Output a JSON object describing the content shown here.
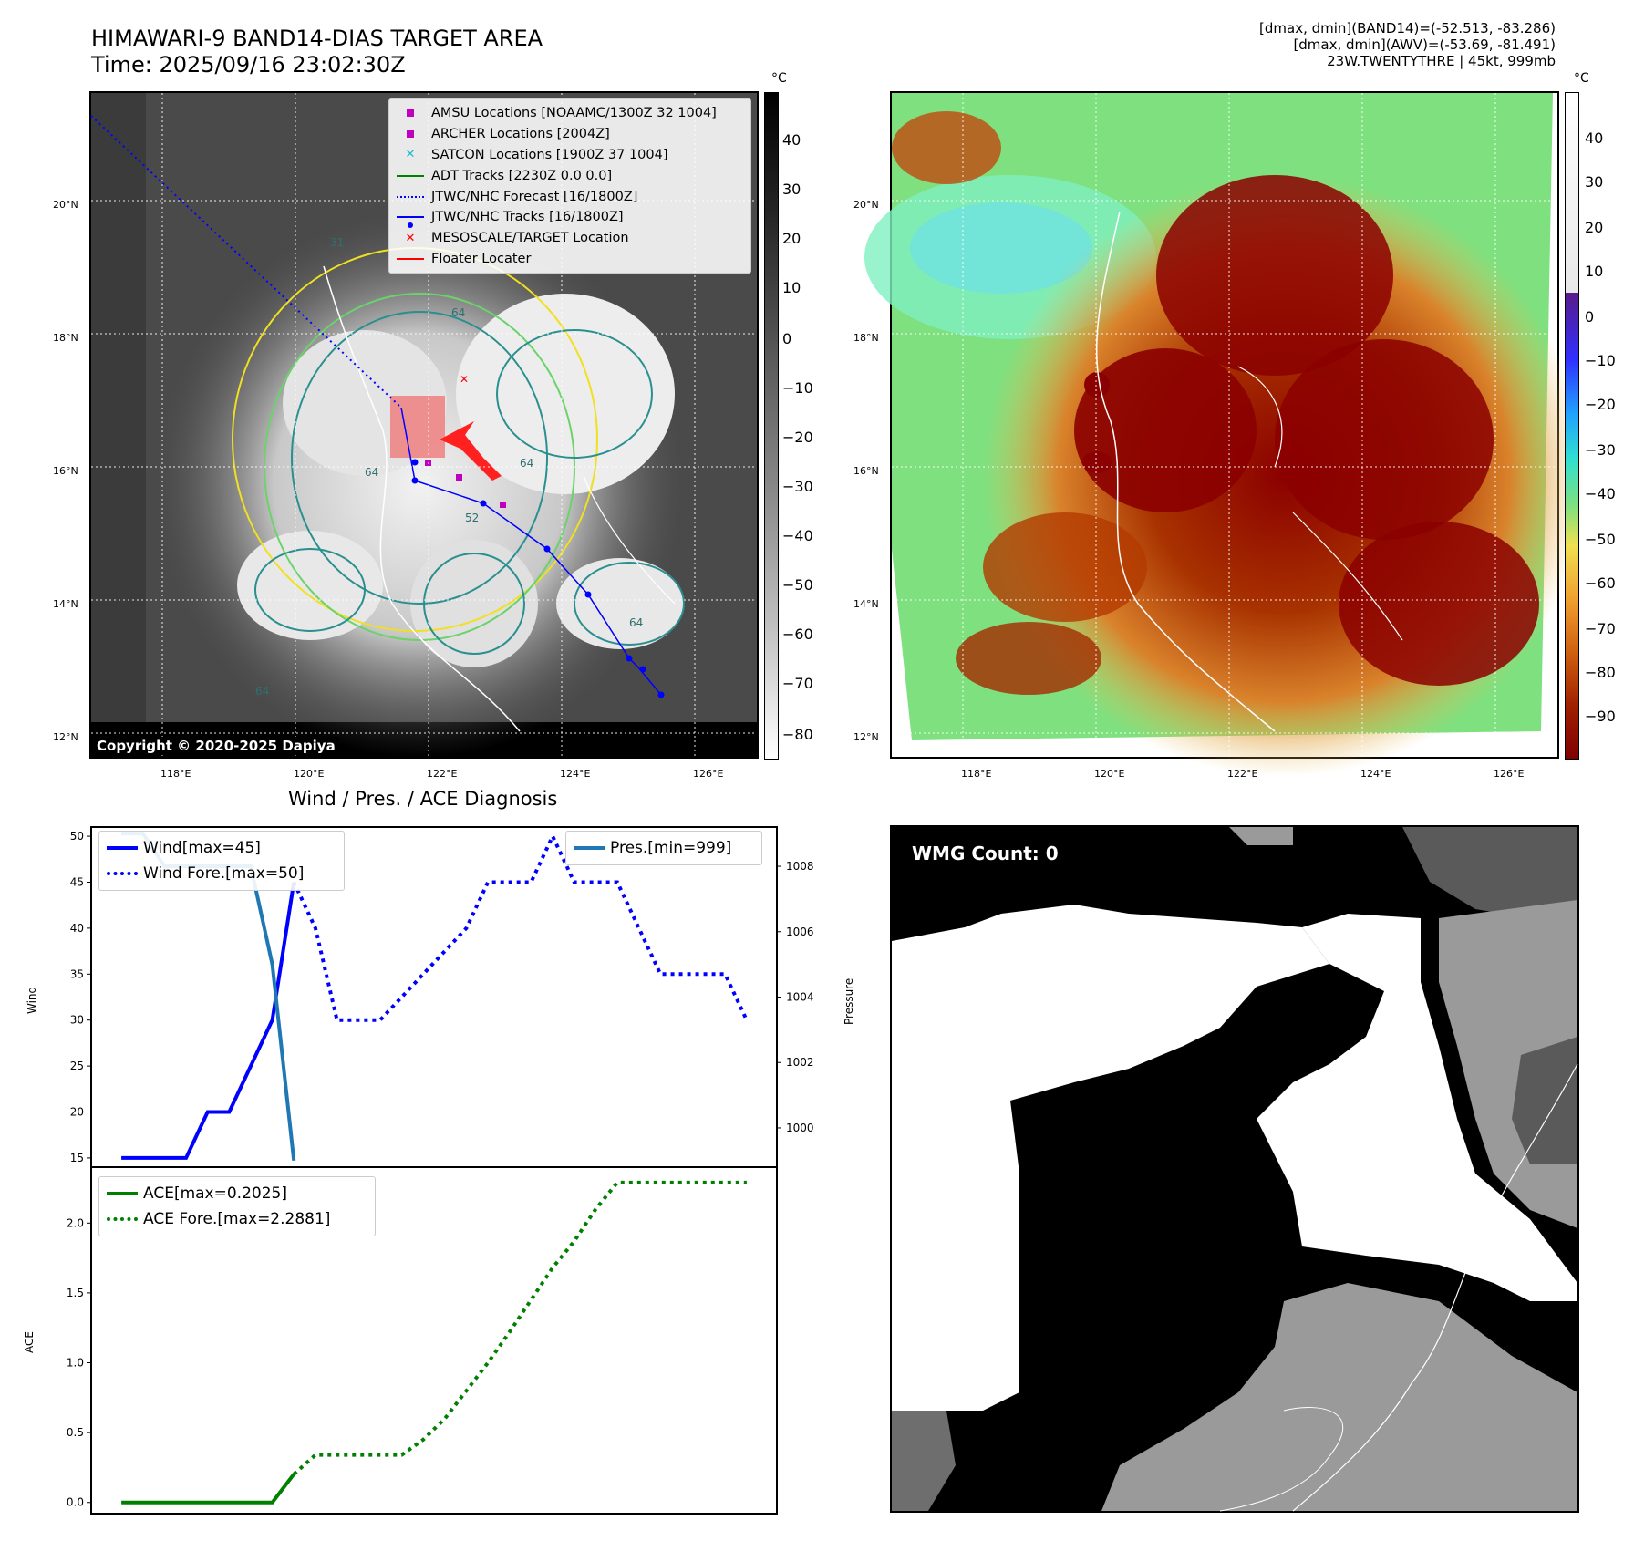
{
  "header": {
    "title_line1": "HIMAWARI-9 BAND14-DIAS TARGET AREA",
    "title_line2": "Time: 2025/09/16 23:02:30Z",
    "info_line1": "[dmax, dmin](BAND14)=(-52.513, -83.286)",
    "info_line2": "[dmax, dmin](AWV)=(-53.69, -81.491)",
    "info_line3": "23W.TWENTYTHRE | 45kt, 999mb"
  },
  "map": {
    "lon_ticks": [
      "118°E",
      "120°E",
      "122°E",
      "124°E",
      "126°E"
    ],
    "lat_ticks": [
      "20°N",
      "18°N",
      "16°N",
      "14°N",
      "12°N"
    ],
    "unit": "°C",
    "copyright": "Copyright © 2020-2025 Dapiya",
    "cbar_left_ticks": [
      "40",
      "30",
      "20",
      "10",
      "0",
      "−10",
      "−20",
      "−30",
      "−40",
      "−50",
      "−60",
      "−70",
      "−80"
    ],
    "cbar_right_ticks": [
      "40",
      "30",
      "20",
      "10",
      "0",
      "−10",
      "−20",
      "−30",
      "−40",
      "−50",
      "−60",
      "−70",
      "−80",
      "−90"
    ],
    "contour_labels": [
      "64",
      "64",
      "64",
      "64",
      "64",
      "52",
      "31"
    ],
    "legend": [
      {
        "label": "AMSU Locations [NOAAMC/1300Z 32 1004]",
        "symbol": "square",
        "color": "#bf00bf"
      },
      {
        "label": "ARCHER Locations [2004Z]",
        "symbol": "square",
        "color": "#bf00bf"
      },
      {
        "label": "SATCON Locations [1900Z 37 1004]",
        "symbol": "x",
        "color": "#17becf"
      },
      {
        "label": "ADT Tracks [2230Z 0.0 0.0]",
        "symbol": "line",
        "color": "#008000"
      },
      {
        "label": "JTWC/NHC Forecast [16/1800Z]",
        "symbol": "dotted",
        "color": "#0000ff"
      },
      {
        "label": "JTWC/NHC Tracks [16/1800Z]",
        "symbol": "line-dot",
        "color": "#0000ff"
      },
      {
        "label": "MESOSCALE/TARGET Location",
        "symbol": "x",
        "color": "#ff0000"
      },
      {
        "label": "Floater Locater",
        "symbol": "line",
        "color": "#ff0000"
      }
    ]
  },
  "wind_chart": {
    "title": "Wind / Pres. / ACE Diagnosis",
    "ylabel_left": "Wind",
    "ylabel_right": "Pressure",
    "legend_left": [
      {
        "label": "Wind[max=45]",
        "style": "solid",
        "color": "#0000ff"
      },
      {
        "label": "Wind Fore.[max=50]",
        "style": "dotted",
        "color": "#0000ff"
      }
    ],
    "legend_right": [
      {
        "label": "Pres.[min=999]",
        "style": "solid",
        "color": "#1f77b4"
      }
    ]
  },
  "ace_chart": {
    "ylabel": "ACE",
    "legend": [
      {
        "label": "ACE[max=0.2025]",
        "style": "solid",
        "color": "#008000"
      },
      {
        "label": "ACE Fore.[max=2.2881]",
        "style": "dotted",
        "color": "#008000"
      }
    ]
  },
  "wmg": {
    "label": "WMG Count: 0"
  },
  "chart_data": [
    {
      "type": "line",
      "title": "Wind / Pres. / ACE Diagnosis",
      "ylabel": "Wind",
      "ylim": [
        14,
        51
      ],
      "yticks": [
        15,
        20,
        25,
        30,
        35,
        40,
        45,
        50
      ],
      "x": [
        0,
        1,
        2,
        3,
        4,
        5,
        6,
        7,
        8,
        9,
        10,
        11,
        12,
        13,
        14,
        15,
        16,
        17,
        18,
        19,
        20,
        21,
        22,
        23,
        24,
        25,
        26,
        27,
        28,
        29
      ],
      "series": [
        {
          "name": "Wind[max=45]",
          "style": "solid",
          "color": "#0000ff",
          "x": [
            0,
            1,
            2,
            3,
            4,
            5,
            6,
            7,
            8
          ],
          "values": [
            15,
            15,
            15,
            15,
            20,
            20,
            25,
            30,
            45
          ]
        },
        {
          "name": "Wind Fore.[max=50]",
          "style": "dotted",
          "color": "#0000ff",
          "x": [
            8,
            9,
            10,
            11,
            12,
            13,
            14,
            15,
            16,
            17,
            18,
            19,
            20,
            21,
            22,
            23,
            24,
            25,
            26,
            27,
            28,
            29
          ],
          "values": [
            45,
            40,
            30,
            30,
            30,
            32.5,
            35,
            37.5,
            40,
            45,
            45,
            45,
            50,
            45,
            45,
            45,
            40,
            35,
            35,
            35,
            35,
            30
          ]
        }
      ]
    },
    {
      "type": "line",
      "ylabel": "Pressure",
      "ylim": [
        998.8,
        1009.2
      ],
      "yticks": [
        1000,
        1002,
        1004,
        1006,
        1008
      ],
      "series": [
        {
          "name": "Pres.[min=999]",
          "style": "solid",
          "color": "#1f77b4",
          "x": [
            0,
            1,
            2,
            3,
            4,
            5,
            6,
            7,
            8
          ],
          "values": [
            1009,
            1009,
            1008,
            1008,
            1008,
            1008,
            1008,
            1005,
            999
          ]
        }
      ]
    },
    {
      "type": "line",
      "ylabel": "ACE",
      "ylim": [
        -0.08,
        2.4
      ],
      "yticks": [
        0.0,
        0.5,
        1.0,
        1.5,
        2.0
      ],
      "series": [
        {
          "name": "ACE[max=0.2025]",
          "style": "solid",
          "color": "#008000",
          "x": [
            0,
            1,
            2,
            3,
            4,
            5,
            6,
            7,
            8
          ],
          "values": [
            0,
            0,
            0,
            0,
            0,
            0,
            0,
            0,
            0.2025
          ]
        },
        {
          "name": "ACE Fore.[max=2.2881]",
          "style": "dotted",
          "color": "#008000",
          "x": [
            8,
            9,
            10,
            11,
            12,
            13,
            14,
            15,
            16,
            17,
            18,
            19,
            20,
            21,
            22,
            23,
            24,
            25,
            26,
            27,
            28,
            29
          ],
          "values": [
            0.2025,
            0.34,
            0.34,
            0.34,
            0.34,
            0.34,
            0.45,
            0.6,
            0.8,
            1.0,
            1.22,
            1.45,
            1.68,
            1.87,
            2.1,
            2.29,
            2.29,
            2.29,
            2.29,
            2.29,
            2.29,
            2.29
          ]
        }
      ]
    }
  ]
}
